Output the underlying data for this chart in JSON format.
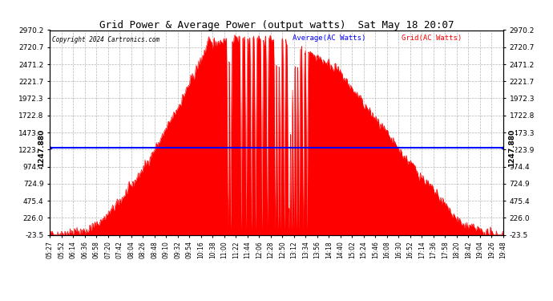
{
  "title": "Grid Power & Average Power (output watts)  Sat May 18 20:07",
  "copyright": "Copyright 2024 Cartronics.com",
  "legend_avg": "Average(AC Watts)",
  "legend_grid": "Grid(AC Watts)",
  "avg_value": 1247.88,
  "y_ticks": [
    2970.2,
    2720.7,
    2471.2,
    2221.7,
    1972.3,
    1722.8,
    1473.3,
    1223.9,
    974.4,
    724.9,
    475.4,
    226.0,
    -23.5
  ],
  "y_min": -23.5,
  "y_max": 2970.2,
  "x_tick_labels": [
    "05:27",
    "05:52",
    "06:14",
    "06:36",
    "06:58",
    "07:20",
    "07:42",
    "08:04",
    "08:26",
    "08:48",
    "09:10",
    "09:32",
    "09:54",
    "10:16",
    "10:38",
    "11:00",
    "11:22",
    "11:44",
    "12:06",
    "12:28",
    "12:50",
    "13:12",
    "13:34",
    "13:56",
    "14:18",
    "14:40",
    "15:02",
    "15:24",
    "15:46",
    "16:08",
    "16:30",
    "16:52",
    "17:14",
    "17:36",
    "17:58",
    "18:20",
    "18:42",
    "19:04",
    "19:26",
    "19:48"
  ],
  "bg_color": "#ffffff",
  "fill_color": "#ff0000",
  "line_color": "#0000ff",
  "grid_color": "#aaaaaa",
  "title_color": "#000000",
  "avg_label_color": "#0000ff",
  "grid_label_color": "#ff0000",
  "avg_label_text": "1247.880"
}
